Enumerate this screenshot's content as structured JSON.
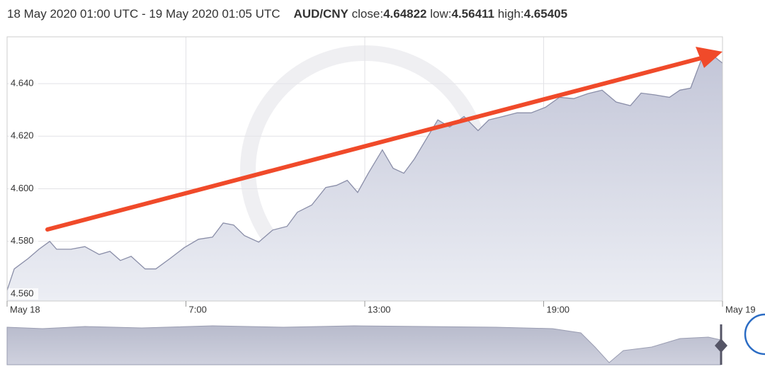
{
  "header": {
    "range": "18 May 2020 01:00 UTC - 19 May 2020 01:05 UTC",
    "pair": "AUD/CNY",
    "stats": [
      {
        "label": "close:",
        "value": 4.64822
      },
      {
        "label": "low:",
        "value": 4.56411
      },
      {
        "label": "high:",
        "value": 4.65405
      }
    ]
  },
  "chart_data": {
    "type": "area",
    "x": [
      0,
      0.24,
      0.71,
      1.07,
      1.43,
      1.66,
      2.14,
      2.61,
      3.09,
      3.45,
      3.8,
      4.16,
      4.63,
      4.99,
      5.47,
      5.94,
      6.42,
      6.89,
      7.25,
      7.6,
      7.96,
      8.44,
      8.91,
      9.39,
      9.74,
      10.22,
      10.69,
      11.05,
      11.41,
      11.76,
      12.12,
      12.59,
      12.95,
      13.31,
      13.66,
      14.02,
      14.45,
      14.85,
      15.33,
      15.8,
      16.16,
      16.63,
      17.11,
      17.58,
      18.06,
      18.53,
      19.01,
      19.48,
      19.96,
      20.43,
      20.91,
      21.27,
      21.74,
      22.22,
      22.57,
      22.93,
      23.29,
      23.64,
      24
    ],
    "values": [
      4.5614,
      4.5695,
      4.5735,
      4.577,
      4.58,
      4.577,
      4.577,
      4.578,
      4.575,
      4.5762,
      4.5727,
      4.5743,
      4.5695,
      4.5695,
      4.5735,
      4.5776,
      4.5808,
      4.5816,
      4.587,
      4.5862,
      4.5822,
      4.5797,
      4.5843,
      4.5857,
      4.5911,
      4.5938,
      4.6005,
      4.6013,
      4.6032,
      4.5986,
      4.6059,
      4.6148,
      4.6078,
      4.6059,
      4.6113,
      4.6181,
      4.6262,
      4.6235,
      4.6275,
      4.6221,
      4.6262,
      4.6275,
      4.6289,
      4.6289,
      4.631,
      4.6348,
      4.6343,
      4.6362,
      4.6375,
      4.633,
      4.6316,
      4.6364,
      4.6357,
      4.6348,
      4.6375,
      4.6383,
      4.6491,
      4.651,
      4.6478
    ],
    "color": "#8a8ea8",
    "xlim": [
      0,
      24
    ],
    "ylim": [
      4.5573,
      4.6578
    ],
    "xticks": [
      {
        "value": 0,
        "label": "May 18"
      },
      {
        "value": 6,
        "label": "7:00"
      },
      {
        "value": 12,
        "label": "13:00"
      },
      {
        "value": 18,
        "label": "19:00"
      },
      {
        "value": 24,
        "label": "May 19"
      }
    ],
    "yticks": [
      {
        "value": 4.56,
        "label": "4.560"
      },
      {
        "value": 4.58,
        "label": "4.580"
      },
      {
        "value": 4.6,
        "label": "4.600"
      },
      {
        "value": 4.62,
        "label": "4.620"
      },
      {
        "value": 4.64,
        "label": "4.640"
      }
    ],
    "grid": true
  }
}
